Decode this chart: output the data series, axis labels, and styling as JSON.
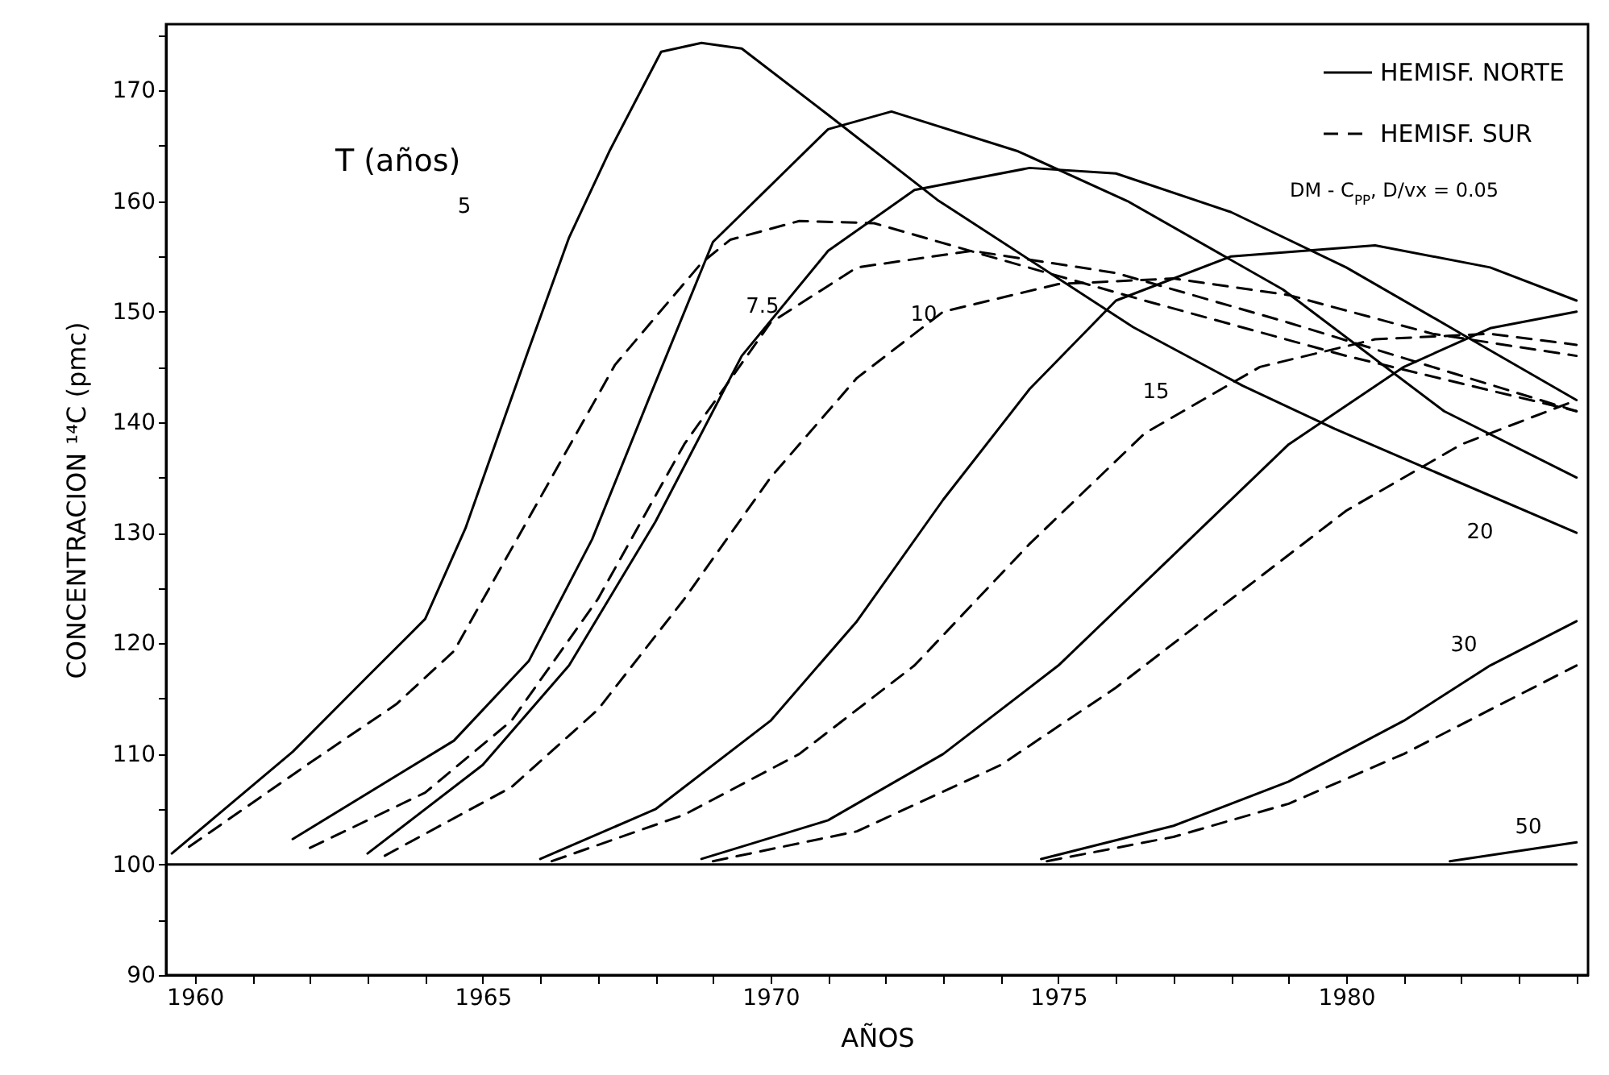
{
  "chart_data": {
    "type": "line",
    "xlabel": "AÑOS",
    "ylabel": "CONCENTRACION ¹⁴C (pmc)",
    "xlim": [
      1959.5,
      1984.2
    ],
    "ylim": [
      90,
      176
    ],
    "xticks": [
      1960,
      {
        "value": 1961,
        "label": null
      },
      {
        "value": 1962,
        "label": null
      },
      {
        "value": 1963,
        "label": null
      },
      {
        "value": 1964,
        "label": null
      },
      1965,
      {
        "value": 1966,
        "label": null
      },
      {
        "value": 1967,
        "label": null
      },
      {
        "value": 1968,
        "label": null
      },
      {
        "value": 1969,
        "label": null
      },
      1970,
      {
        "value": 1971,
        "label": null
      },
      {
        "value": 1972,
        "label": null
      },
      {
        "value": 1973,
        "label": null
      },
      {
        "value": 1974,
        "label": null
      },
      1975,
      {
        "value": 1976,
        "label": null
      },
      {
        "value": 1977,
        "label": null
      },
      {
        "value": 1978,
        "label": null
      },
      {
        "value": 1979,
        "label": null
      },
      1980,
      {
        "value": 1981,
        "label": null
      },
      {
        "value": 1982,
        "label": null
      },
      {
        "value": 1983,
        "label": null
      },
      {
        "value": 1984,
        "label": null
      }
    ],
    "yticks": [
      90,
      {
        "value": 95,
        "label": null
      },
      100,
      {
        "value": 105,
        "label": null
      },
      110,
      {
        "value": 115,
        "label": null
      },
      120,
      {
        "value": 125,
        "label": null
      },
      130,
      {
        "value": 135,
        "label": null
      },
      140,
      {
        "value": 145,
        "label": null
      },
      150,
      {
        "value": 155,
        "label": null
      },
      160,
      {
        "value": 165,
        "label": null
      },
      170,
      {
        "value": 175,
        "label": null
      }
    ],
    "legend": "top right",
    "grid": false,
    "series": [
      {
        "name": "HEMISF. NORTE",
        "color": "#000000",
        "line_style": "solid",
        "x": [
          1959.6,
          1961.7,
          1963,
          1964,
          1964.7,
          1965.8,
          1966.5,
          1967.2,
          1968.1,
          1968.8,
          1969.5,
          1971,
          1972.9,
          1976.3,
          1978.2,
          1979.8,
          1984
        ],
        "values": [
          101,
          110.2,
          117,
          122.2,
          130.4,
          146.6,
          156.7,
          164.5,
          173.5,
          174.3,
          173.8,
          167.8,
          160.1,
          148.6,
          143.3,
          139.4,
          130
        ]
      },
      {
        "name": "HEMISF. SUR",
        "color": "#000000",
        "line_style": "dashed",
        "x": [
          1959.9,
          1962,
          1963.5,
          1964.5,
          1965.7,
          1967.3,
          1968,
          1968.8,
          1969.3,
          1970.5,
          1971.8,
          1973.8,
          1976.5,
          1980,
          1984
        ],
        "values": [
          101.6,
          109.2,
          114.5,
          119.3,
          130.4,
          145.2,
          149.5,
          154.4,
          156.5,
          158.2,
          158,
          155,
          151,
          146,
          141
        ]
      },
      {
        "color": "#000000",
        "line_style": "solid",
        "x": [
          1961.7,
          1964.5,
          1965.8,
          1966.9,
          1967.9,
          1969,
          1971,
          1972.1,
          1974.3,
          1976.2,
          1978.9,
          1981.7,
          1984
        ],
        "values": [
          102.3,
          111.2,
          118.4,
          129.4,
          142.3,
          156.3,
          166.5,
          168.1,
          164.5,
          160,
          152,
          141,
          135
        ]
      },
      {
        "color": "#000000",
        "line_style": "dashed",
        "x": [
          1962,
          1964,
          1965.5,
          1967,
          1968.5,
          1970,
          1971.5,
          1973.5,
          1976,
          1979,
          1984
        ],
        "values": [
          101.5,
          106.5,
          113,
          124,
          138,
          149,
          154,
          155.5,
          153.5,
          149,
          141
        ]
      },
      {
        "color": "#000000",
        "line_style": "solid",
        "x": [
          1963,
          1965,
          1966.5,
          1968,
          1969.5,
          1971,
          1972.5,
          1974.5,
          1976,
          1978,
          1980,
          1982,
          1984
        ],
        "values": [
          101,
          109,
          118,
          131,
          146,
          155.5,
          161,
          163,
          162.5,
          159,
          154,
          148,
          142
        ]
      },
      {
        "color": "#000000",
        "line_style": "dashed",
        "x": [
          1963.3,
          1965.5,
          1967,
          1968.5,
          1970,
          1971.5,
          1973,
          1975,
          1977,
          1979,
          1981.5,
          1984
        ],
        "values": [
          100.8,
          107,
          114,
          124,
          135,
          144,
          150,
          152.5,
          153,
          151.5,
          148,
          146
        ]
      },
      {
        "color": "#000000",
        "line_style": "solid",
        "x": [
          1966,
          1968,
          1970,
          1971.5,
          1973,
          1974.5,
          1976,
          1978,
          1980.5,
          1982.5,
          1984
        ],
        "values": [
          100.5,
          105,
          113,
          122,
          133,
          143,
          151,
          155,
          156,
          154,
          151
        ]
      },
      {
        "color": "#000000",
        "line_style": "dashed",
        "x": [
          1966.2,
          1968.5,
          1970.5,
          1972.5,
          1974.5,
          1976.5,
          1978.5,
          1980.5,
          1982.5,
          1984
        ],
        "values": [
          100.3,
          104.5,
          110,
          118,
          129,
          139,
          145,
          147.5,
          148,
          147
        ]
      },
      {
        "color": "#000000",
        "line_style": "solid",
        "x": [
          1968.8,
          1971,
          1973,
          1975,
          1977,
          1979,
          1981,
          1982.5,
          1984
        ],
        "values": [
          100.5,
          104,
          110,
          118,
          128,
          138,
          145,
          148.5,
          150
        ]
      },
      {
        "color": "#000000",
        "line_style": "dashed",
        "x": [
          1969,
          1971.5,
          1974,
          1976,
          1978,
          1980,
          1982,
          1984
        ],
        "values": [
          100.3,
          103,
          109,
          116,
          124,
          132,
          138,
          142
        ]
      },
      {
        "color": "#000000",
        "line_style": "solid",
        "x": [
          1974.7,
          1977,
          1979,
          1981,
          1982.5,
          1984
        ],
        "values": [
          100.5,
          103.5,
          107.5,
          113,
          118,
          122
        ]
      },
      {
        "color": "#000000",
        "line_style": "dashed",
        "x": [
          1974.8,
          1977,
          1979,
          1981,
          1982.5,
          1984
        ],
        "values": [
          100.3,
          102.5,
          105.5,
          110,
          114,
          118
        ]
      },
      {
        "color": "#000000",
        "line_style": "solid",
        "x": [
          1981.8,
          1984
        ],
        "values": [
          100.3,
          102
        ]
      },
      {
        "color": "#000000",
        "line_style": "solid",
        "x": [
          1959.5,
          1984
        ],
        "values": [
          100,
          100
        ]
      }
    ],
    "annotations": [
      "T (años)",
      "DM - C$_{PP}$, D/vx = 0.05",
      "5",
      "7.5",
      "10",
      "15",
      "20",
      "30",
      "50"
    ]
  }
}
